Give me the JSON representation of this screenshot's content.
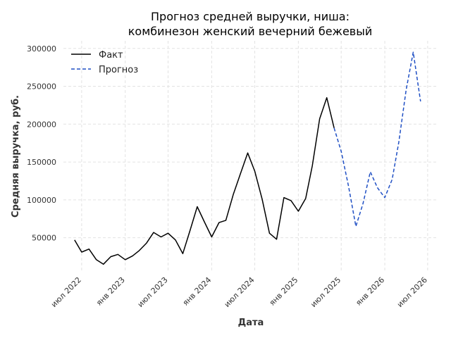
{
  "chart_data": {
    "type": "line",
    "title_line1": "Прогноз средней выручки, ниша:",
    "title_line2": "комбинезон женский вечерний бежевый",
    "xlabel": "Дата",
    "ylabel": "Средняя выручка, руб.",
    "legend_position": "top-left",
    "grid": true,
    "ylim": [
      5000,
      310000
    ],
    "y_ticks": [
      50000,
      100000,
      150000,
      200000,
      250000,
      300000
    ],
    "x_ticks": [
      {
        "date": "2022-07-01",
        "label": "июл 2022"
      },
      {
        "date": "2023-01-01",
        "label": "янв 2023"
      },
      {
        "date": "2023-07-01",
        "label": "июл 2023"
      },
      {
        "date": "2024-01-01",
        "label": "янв 2024"
      },
      {
        "date": "2024-07-01",
        "label": "июл 2024"
      },
      {
        "date": "2025-01-01",
        "label": "янв 2025"
      },
      {
        "date": "2025-07-01",
        "label": "июл 2025"
      },
      {
        "date": "2026-01-01",
        "label": "янв 2026"
      },
      {
        "date": "2026-07-01",
        "label": "июл 2026"
      }
    ],
    "xlim": [
      "2022-04-15",
      "2026-08-15"
    ],
    "series": [
      {
        "name": "Факт",
        "color": "#000000",
        "style": "solid",
        "points": [
          [
            "2022-06-01",
            47000
          ],
          [
            "2022-07-01",
            31000
          ],
          [
            "2022-08-01",
            35000
          ],
          [
            "2022-09-01",
            21000
          ],
          [
            "2022-10-01",
            15000
          ],
          [
            "2022-11-01",
            25000
          ],
          [
            "2022-12-01",
            28000
          ],
          [
            "2023-01-01",
            21000
          ],
          [
            "2023-02-01",
            26000
          ],
          [
            "2023-03-01",
            33000
          ],
          [
            "2023-04-01",
            43000
          ],
          [
            "2023-05-01",
            57000
          ],
          [
            "2023-06-01",
            51000
          ],
          [
            "2023-07-01",
            56000
          ],
          [
            "2023-08-01",
            47000
          ],
          [
            "2023-09-01",
            29000
          ],
          [
            "2023-10-01",
            59000
          ],
          [
            "2023-11-01",
            91000
          ],
          [
            "2023-12-01",
            71000
          ],
          [
            "2024-01-01",
            51000
          ],
          [
            "2024-02-01",
            70000
          ],
          [
            "2024-03-01",
            73000
          ],
          [
            "2024-04-01",
            107000
          ],
          [
            "2024-05-01",
            134000
          ],
          [
            "2024-06-01",
            162000
          ],
          [
            "2024-07-01",
            138000
          ],
          [
            "2024-08-01",
            101000
          ],
          [
            "2024-09-01",
            56000
          ],
          [
            "2024-10-01",
            48000
          ],
          [
            "2024-11-01",
            103000
          ],
          [
            "2024-12-01",
            99000
          ],
          [
            "2025-01-01",
            85000
          ],
          [
            "2025-02-01",
            102000
          ],
          [
            "2025-03-01",
            145000
          ],
          [
            "2025-04-01",
            207000
          ],
          [
            "2025-05-01",
            235000
          ],
          [
            "2025-06-01",
            195000
          ]
        ]
      },
      {
        "name": "Прогноз",
        "color": "#1f4fc4",
        "style": "dashed",
        "points": [
          [
            "2025-06-01",
            195000
          ],
          [
            "2025-07-01",
            164000
          ],
          [
            "2025-08-01",
            118000
          ],
          [
            "2025-09-01",
            65000
          ],
          [
            "2025-10-01",
            95000
          ],
          [
            "2025-11-01",
            137000
          ],
          [
            "2025-12-01",
            116000
          ],
          [
            "2026-01-01",
            103000
          ],
          [
            "2026-02-01",
            127000
          ],
          [
            "2026-03-01",
            176000
          ],
          [
            "2026-04-01",
            245000
          ],
          [
            "2026-05-01",
            295000
          ],
          [
            "2026-06-01",
            230000
          ]
        ]
      }
    ]
  }
}
